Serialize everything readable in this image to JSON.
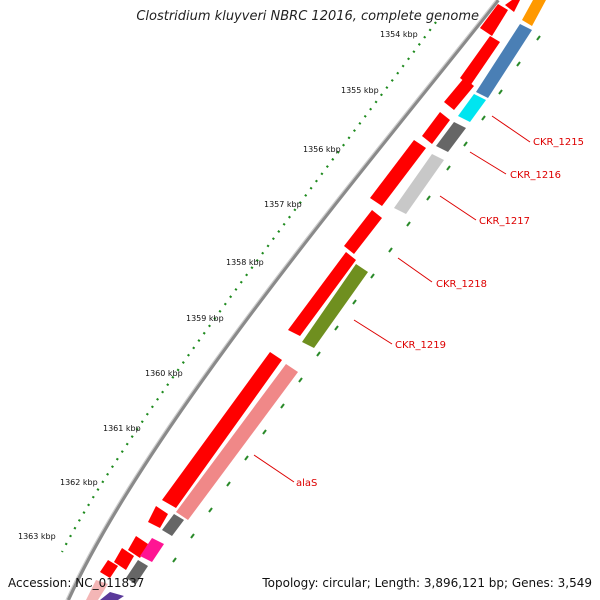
{
  "title": "Clostridium kluyveri NBRC 12016, complete genome",
  "accession": "Accession: NC_011837",
  "summary": "Topology: circular; Length: 3,896,121 bp; Genes: 3,549",
  "colors": {
    "red": "#ff0000",
    "tick": "#2a8a2a",
    "backbone": "#888888",
    "label": "#dd0000"
  },
  "ticks": [
    {
      "label": "1354 kbp"
    },
    {
      "label": "1355 kbp"
    },
    {
      "label": "1356 kbp"
    },
    {
      "label": "1357 kbp"
    },
    {
      "label": "1358 kbp"
    },
    {
      "label": "1359 kbp"
    },
    {
      "label": "1360 kbp"
    },
    {
      "label": "1361 kbp"
    },
    {
      "label": "1362 kbp"
    },
    {
      "label": "1363 kbp"
    }
  ],
  "gene_labels": [
    {
      "name": "CKR_1215"
    },
    {
      "name": "CKR_1216"
    },
    {
      "name": "CKR_1217"
    },
    {
      "name": "CKR_1218"
    },
    {
      "name": "CKR_1219"
    },
    {
      "name": "alaS"
    }
  ]
}
